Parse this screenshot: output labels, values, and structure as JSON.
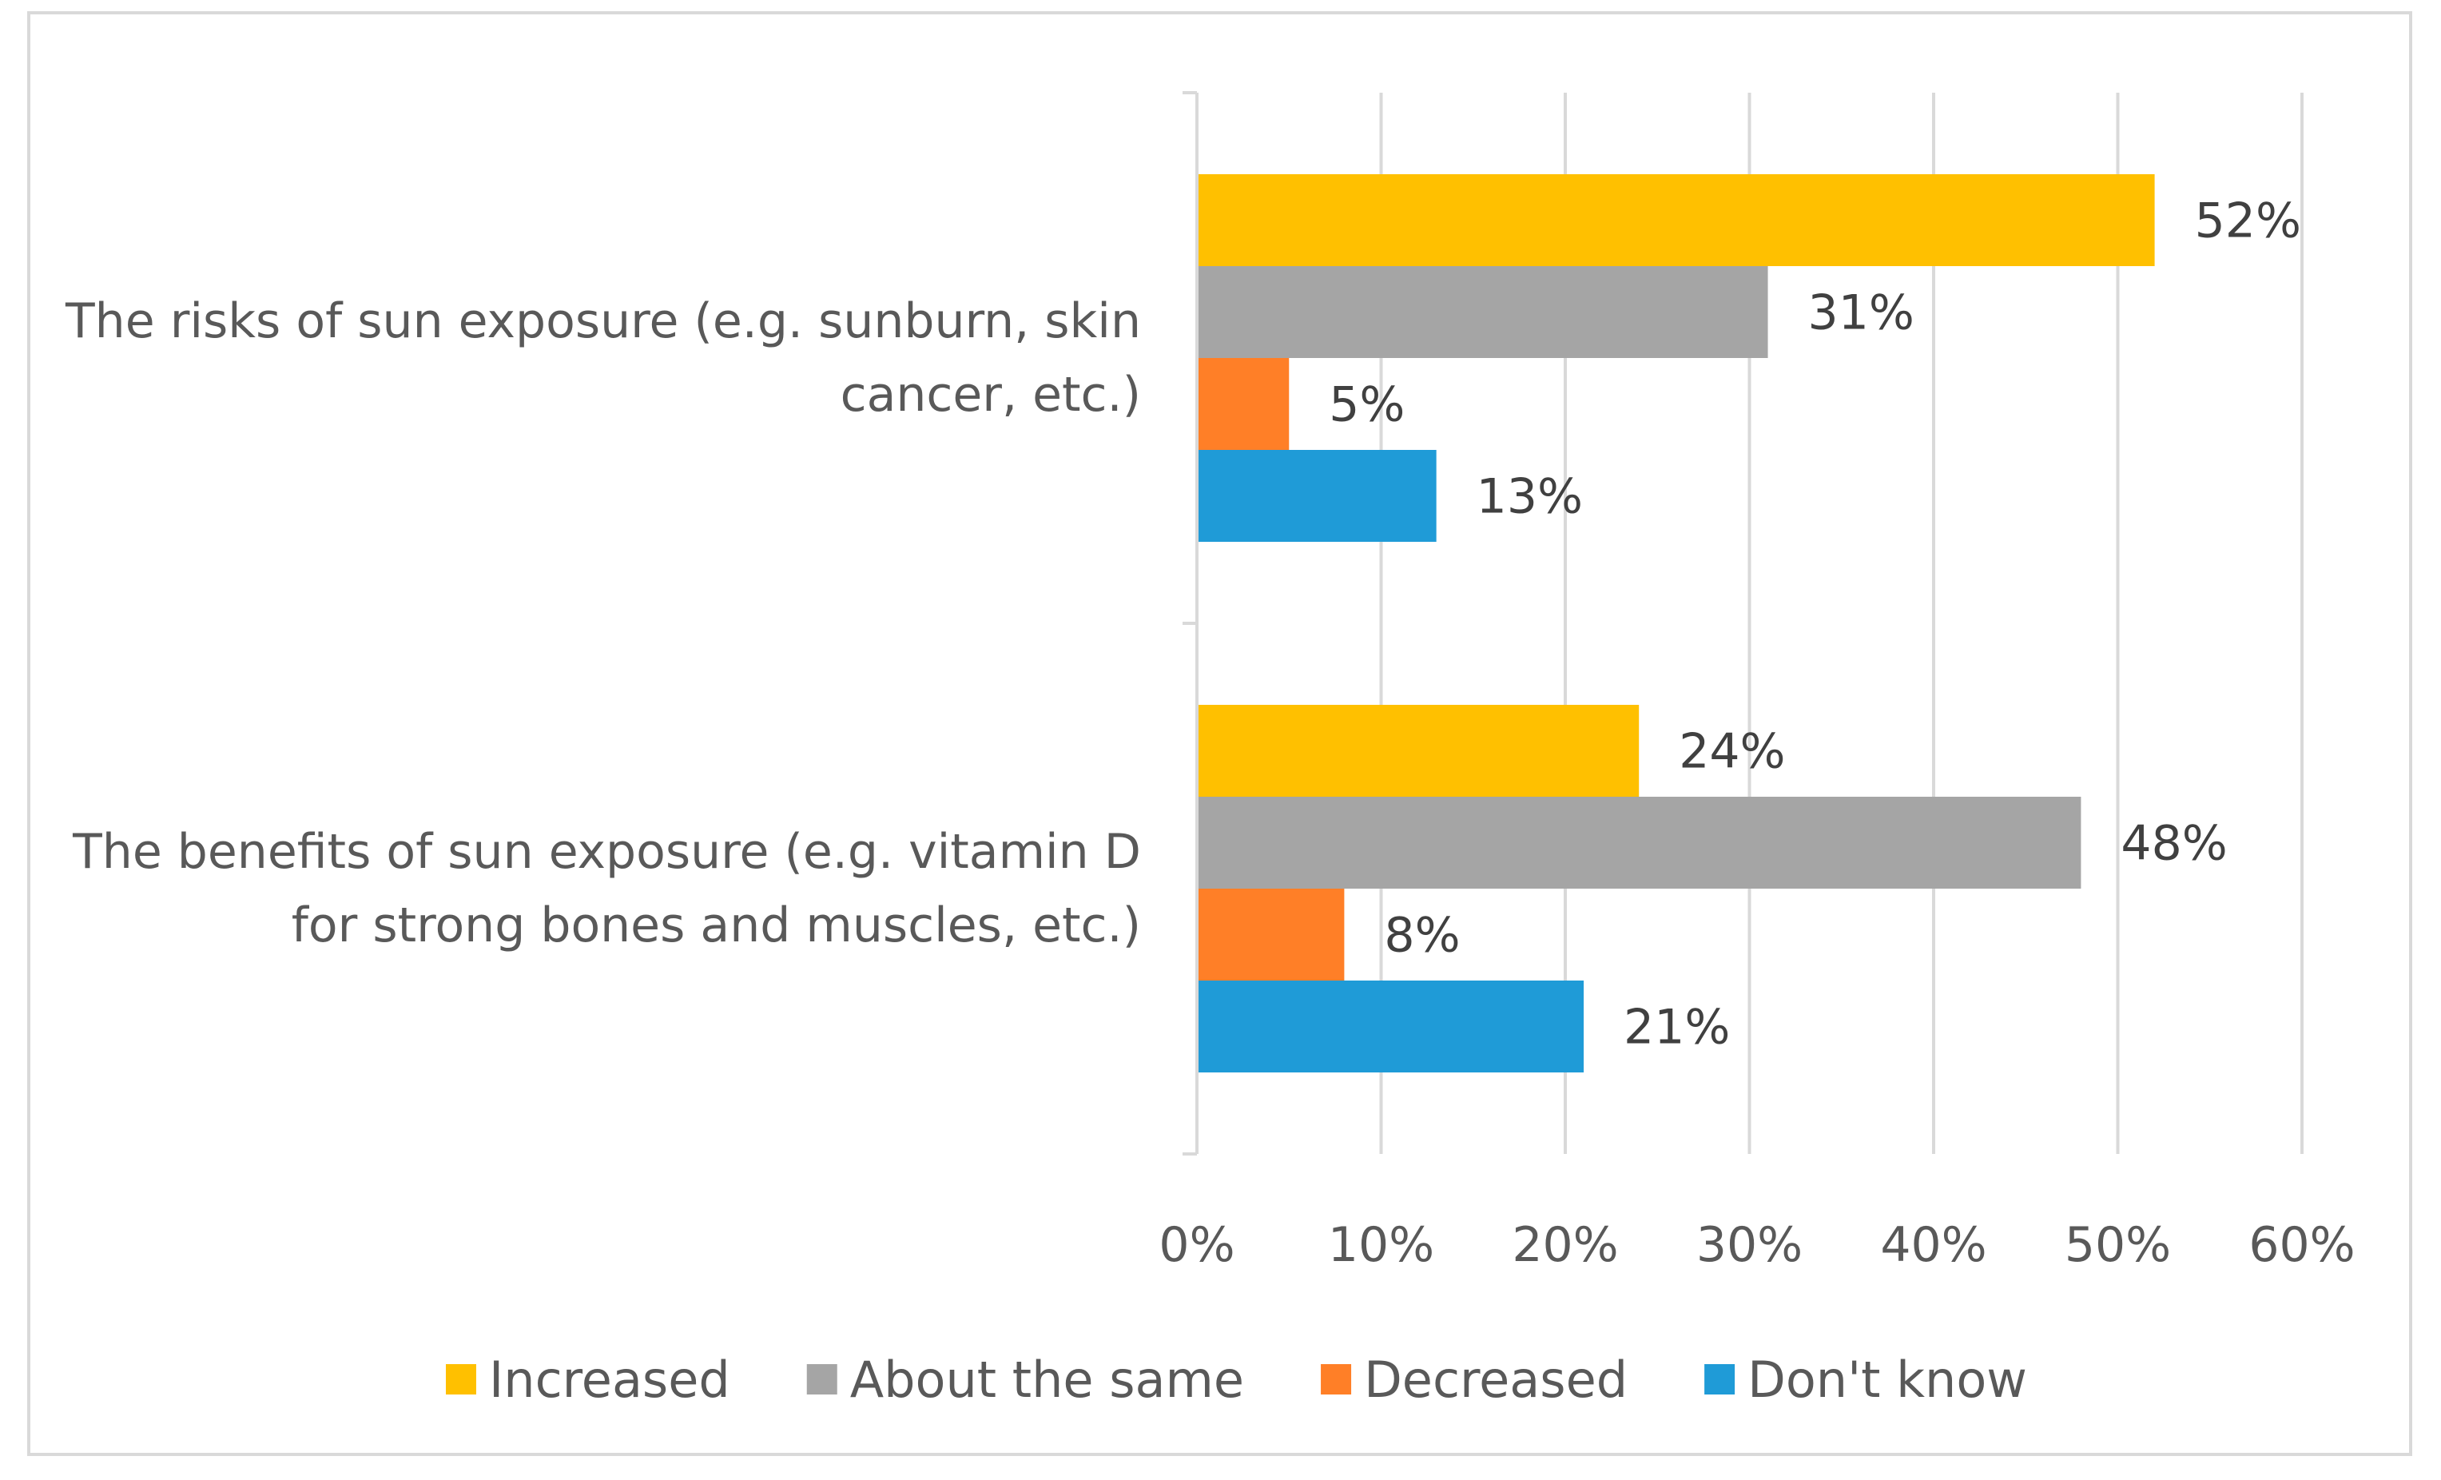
{
  "chart_data": {
    "type": "bar",
    "orientation": "horizontal",
    "categories": [
      "The risks of sun exposure (e.g. sunburn, skin cancer, etc.)",
      "The benefits of sun exposure (e.g. vitamin D for strong bones and muscles, etc.)"
    ],
    "category_lines": [
      [
        "The risks of sun exposure (e.g. sunburn, skin",
        "cancer, etc.)"
      ],
      [
        "The benefits of sun exposure (e.g. vitamin D",
        "for strong bones and muscles, etc.)"
      ]
    ],
    "series": [
      {
        "name": "Increased",
        "color": "#FFC000",
        "values": [
          52,
          24
        ]
      },
      {
        "name": "About the same",
        "color": "#A5A5A5",
        "values": [
          31,
          48
        ]
      },
      {
        "name": "Decreased",
        "color": "#FF7F27",
        "values": [
          5,
          8
        ]
      },
      {
        "name": "Don't know",
        "color": "#1F9BD7",
        "values": [
          13,
          21
        ]
      }
    ],
    "value_suffix": "%",
    "xlim": [
      0,
      60
    ],
    "x_ticks": [
      0,
      10,
      20,
      30,
      40,
      50,
      60
    ],
    "x_tick_labels": [
      "0%",
      "10%",
      "20%",
      "30%",
      "40%",
      "50%",
      "60%"
    ],
    "grid": true,
    "legend_position": "bottom",
    "title": "",
    "xlabel": "",
    "ylabel": ""
  }
}
